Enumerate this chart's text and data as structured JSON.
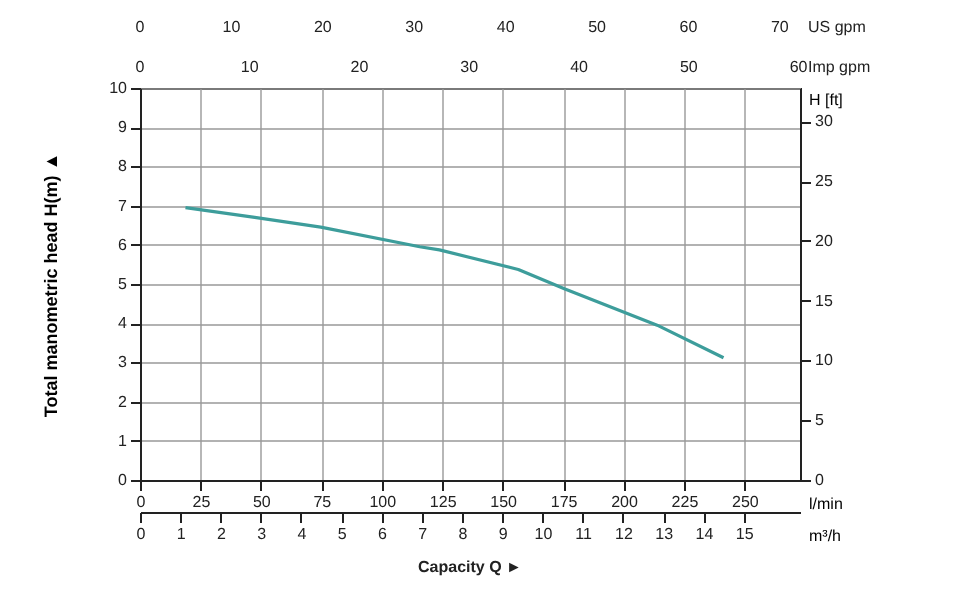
{
  "chart_data": {
    "type": "line",
    "xlabel": "m³/h",
    "ylabel": "Total manometric head H(m) ▲",
    "y2label": "H [ft]",
    "x2label": "l/min",
    "x": [
      1.13,
      2.85,
      4.49,
      6.95,
      7.44,
      9.4,
      10.56,
      12.85,
      14.5
    ],
    "series": [
      {
        "color": "#3d9d9b",
        "values": [
          6.95,
          6.7,
          6.45,
          5.95,
          5.87,
          5.37,
          4.87,
          3.95,
          3.12
        ]
      }
    ],
    "xlim": [
      0,
      16.4
    ],
    "xticks": [
      0,
      1,
      2,
      3,
      4,
      5,
      6,
      7,
      8,
      9,
      10,
      11,
      12,
      13,
      14,
      15
    ],
    "ylim": [
      0,
      10
    ],
    "yticks": [
      0,
      1,
      2,
      3,
      4,
      5,
      6,
      7,
      8,
      9,
      10
    ],
    "y2lim": [
      0,
      32.8
    ],
    "y2ticks": [
      0,
      5,
      10,
      15,
      20,
      25,
      30
    ],
    "x2lim": [
      0,
      273
    ],
    "x2ticks": [
      0,
      25,
      50,
      75,
      100,
      125,
      150,
      175,
      200,
      225,
      250
    ],
    "annotations": [
      "0",
      "10",
      "20",
      "30",
      "40",
      "50",
      "60",
      "Imp gpm",
      "0",
      "10",
      "20",
      "30",
      "40",
      "50",
      "60",
      "70",
      "US gpm",
      "Capacity Q ►"
    ],
    "grid": true,
    "marker": "none",
    "line_style": "solid"
  }
}
